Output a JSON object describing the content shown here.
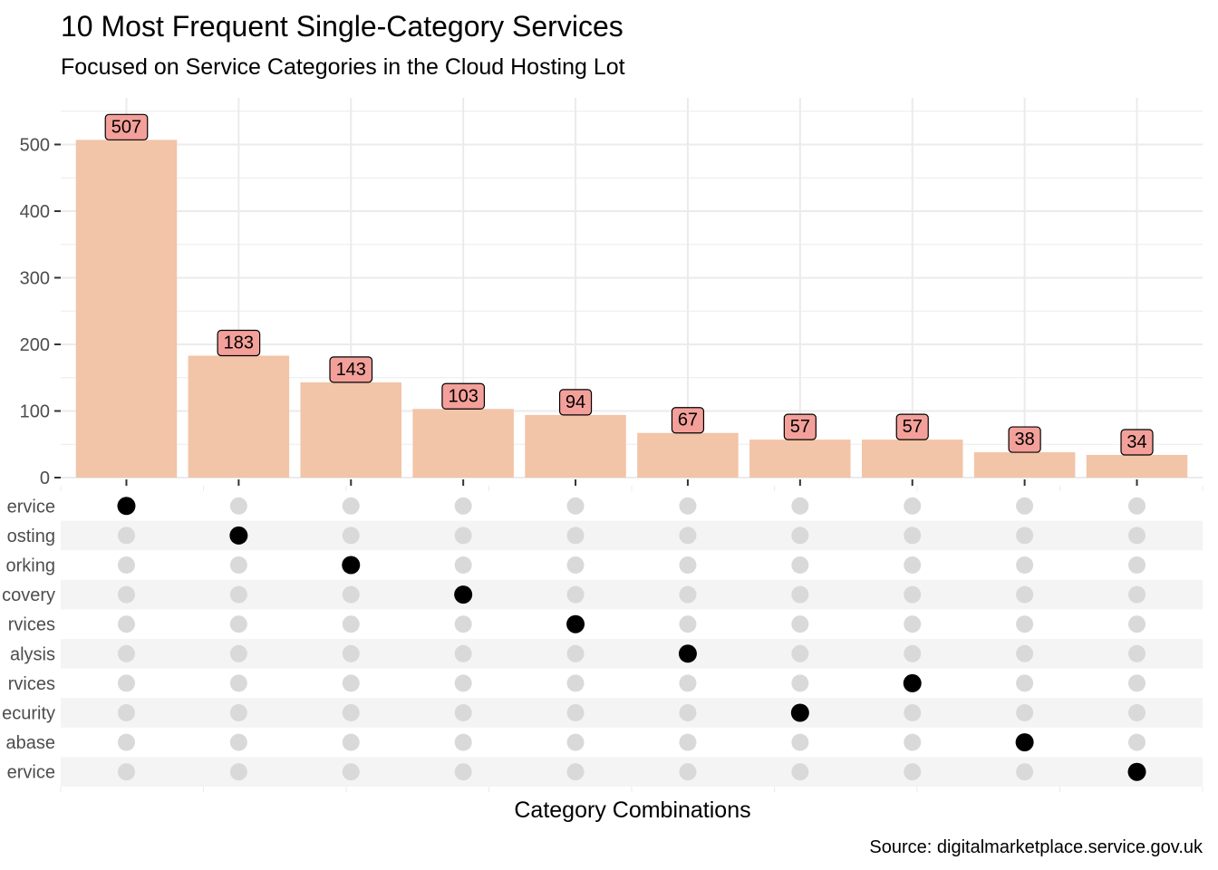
{
  "chart_data": {
    "type": "bar",
    "title": "10 Most Frequent Single-Category Services",
    "subtitle": "Focused on Service Categories in the Cloud Hosting Lot",
    "xlabel": "Category Combinations",
    "caption": "Source: digitalmarketplace.service.gov.uk",
    "ylim": [
      0,
      570
    ],
    "yticks": [
      0,
      100,
      200,
      300,
      400,
      500
    ],
    "values": [
      507,
      183,
      143,
      103,
      94,
      67,
      57,
      57,
      38,
      34
    ],
    "value_labels": [
      "507",
      "183",
      "143",
      "103",
      "94",
      "67",
      "57",
      "57",
      "38",
      "34"
    ],
    "y_tick_labels": [
      "0",
      "100",
      "200",
      "300",
      "400",
      "500"
    ],
    "matrix_rows": [
      "ervice",
      "osting",
      "orking",
      "covery",
      "rvices",
      "alysis",
      "rvices",
      "ecurity",
      "abase",
      "ervice"
    ],
    "active_row_per_bar": [
      0,
      1,
      2,
      3,
      4,
      5,
      6,
      7,
      8,
      9
    ],
    "active_row_per_bar_note_free": true,
    "bar_active_rows": [
      0,
      1,
      2,
      3,
      4,
      5,
      7,
      6,
      8,
      9
    ],
    "grid": true,
    "colors": {
      "bar": "#f2c4a8",
      "label_fill": "#f4a09a",
      "dot_active": "#000000",
      "dot_inactive": "#d9d9d9",
      "stripe": "#f4f4f4",
      "grid": "#ebebeb"
    }
  }
}
